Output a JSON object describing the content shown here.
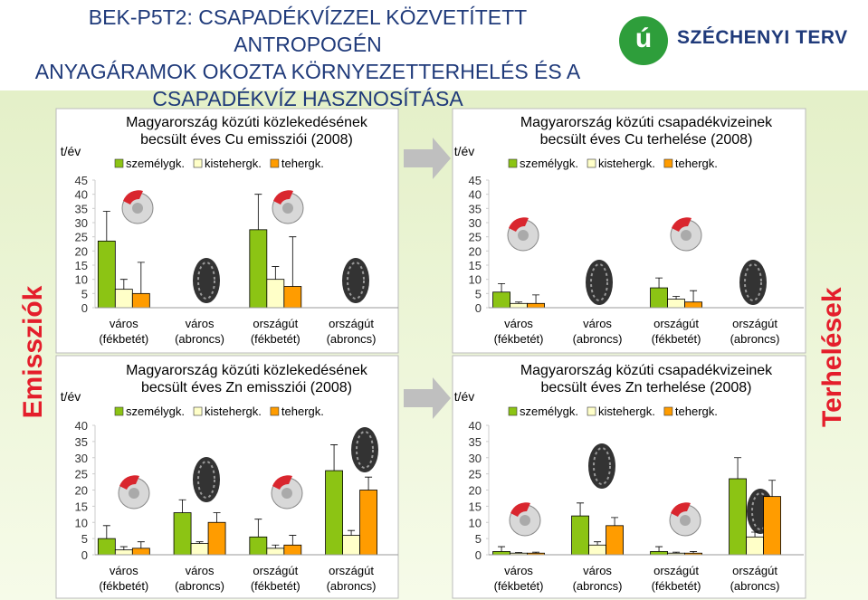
{
  "title_lines": [
    "BEK-P5T2: CSAPADÉKVÍZZEL KÖZVETÍTETT ANTROPOGÉN",
    "ANYAGÁRAMOK OKOZTA KÖRNYEZETTERHELÉS ÉS A",
    "CSAPADÉKVÍZ HASZNOSÍTÁSA"
  ],
  "logo_mark": "ú",
  "logo": "SZÉCHENYI TERV",
  "side_labels": {
    "left": "Emissziók",
    "right": "Terhelések"
  },
  "chart_data": [
    {
      "type": "bar",
      "title": "Magyarország közúti közlekedésének becsült éves Cu emissziói (2008)",
      "y_label": "t/év",
      "categories": [
        "város (fékbetét)",
        "város (abroncs)",
        "országút (fékbetét)",
        "országút (abroncs)"
      ],
      "series": [
        {
          "name": "személygk.",
          "color": "#8cc414",
          "values": [
            23.5,
            0,
            27.5,
            0
          ],
          "errors": [
            10.5,
            0,
            12.5,
            0
          ]
        },
        {
          "name": "kistehergk.",
          "color": "#ffffc8",
          "values": [
            6.5,
            0,
            10,
            0
          ],
          "errors": [
            3.5,
            0,
            4.5,
            0
          ]
        },
        {
          "name": "tehergk.",
          "color": "#ff9c00",
          "values": [
            5,
            0,
            7.5,
            0
          ],
          "errors": [
            11,
            0,
            17.5,
            0
          ]
        }
      ],
      "ylim": [
        0,
        45
      ],
      "yticks": [
        0,
        5,
        10,
        15,
        20,
        25,
        30,
        35,
        40,
        45
      ]
    },
    {
      "type": "bar",
      "title": "Magyarország közúti közlekedésének becsült éves Zn emissziói (2008)",
      "y_label": "t/év",
      "categories": [
        "város (fékbetét)",
        "város (abroncs)",
        "országút (fékbetét)",
        "országút (abroncs)"
      ],
      "series": [
        {
          "name": "személygk.",
          "color": "#8cc414",
          "values": [
            5,
            13,
            5.5,
            26
          ],
          "errors": [
            4,
            4,
            5.5,
            8
          ]
        },
        {
          "name": "kistehergk.",
          "color": "#ffffc8",
          "values": [
            1.5,
            3.5,
            2,
            6
          ],
          "errors": [
            1,
            0.5,
            1,
            1.5
          ]
        },
        {
          "name": "tehergk.",
          "color": "#ff9c00",
          "values": [
            2,
            10,
            3,
            20
          ],
          "errors": [
            2,
            3,
            3,
            4
          ]
        }
      ],
      "ylim": [
        0,
        40
      ],
      "yticks": [
        0,
        5,
        10,
        15,
        20,
        25,
        30,
        35,
        40
      ]
    },
    {
      "type": "bar",
      "title": "Magyarország közúti csapadékvizeinek becsült éves Cu terhelése (2008)",
      "y_label": "t/év",
      "categories": [
        "város (fékbetét)",
        "város (abroncs)",
        "országút (fékbetét)",
        "országút (abroncs)"
      ],
      "series": [
        {
          "name": "személygk.",
          "color": "#8cc414",
          "values": [
            5.5,
            0,
            7,
            0
          ],
          "errors": [
            3,
            0,
            3.5,
            0
          ]
        },
        {
          "name": "kistehergk.",
          "color": "#ffffc8",
          "values": [
            1.5,
            0,
            3,
            0
          ],
          "errors": [
            0.5,
            0,
            1,
            0
          ]
        },
        {
          "name": "tehergk.",
          "color": "#ff9c00",
          "values": [
            1.5,
            0,
            2,
            0
          ],
          "errors": [
            3,
            0,
            4,
            0
          ]
        }
      ],
      "ylim": [
        0,
        45
      ],
      "yticks": [
        0,
        5,
        10,
        15,
        20,
        25,
        30,
        35,
        40,
        45
      ]
    },
    {
      "type": "bar",
      "title": "Magyarország közúti csapadékvizeinek becsült éves Zn terhelése (2008)",
      "y_label": "t/év",
      "categories": [
        "város (fékbetét)",
        "város (abroncs)",
        "országút (fékbetét)",
        "országút (abroncs)"
      ],
      "series": [
        {
          "name": "személygk.",
          "color": "#8cc414",
          "values": [
            1,
            12,
            1,
            23.5
          ],
          "errors": [
            1.5,
            4,
            1.5,
            6.5
          ]
        },
        {
          "name": "kistehergk.",
          "color": "#ffffc8",
          "values": [
            0.5,
            3,
            0.5,
            5.5
          ],
          "errors": [
            0.2,
            1,
            0.3,
            1.5
          ]
        },
        {
          "name": "tehergk.",
          "color": "#ff9c00",
          "values": [
            0.5,
            9,
            0.5,
            18
          ],
          "errors": [
            0.3,
            2.5,
            0.5,
            5
          ]
        }
      ],
      "ylim": [
        0,
        40
      ],
      "yticks": [
        0,
        5,
        10,
        15,
        20,
        25,
        30,
        35,
        40
      ]
    }
  ]
}
